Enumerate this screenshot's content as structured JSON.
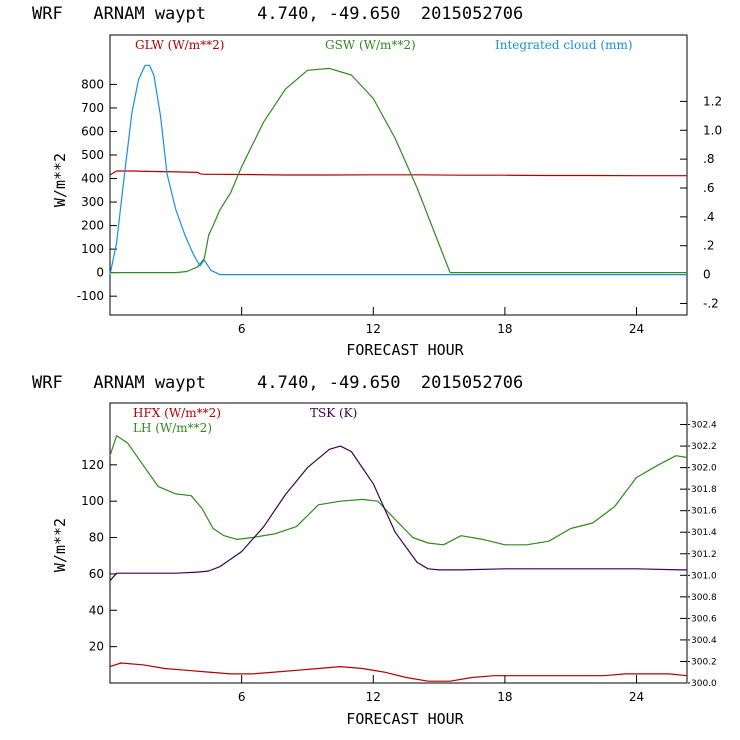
{
  "colors": {
    "glw": "#b40000",
    "gsw": "#2e8b1e",
    "cloud": "#1a8fe0",
    "hfx": "#b40000",
    "lh": "#2e8b1e",
    "tsk": "#3c0050",
    "axis": "#000000"
  },
  "chart_data": [
    {
      "type": "line",
      "title": "WRF   ARNAM waypt     4.740, -49.650  2015052706",
      "xlabel": "FORECAST HOUR",
      "ylabel": "W/m**2",
      "xlim": [
        0,
        26.3
      ],
      "ylim": [
        -180,
        1010
      ],
      "y2lim": [
        -0.28,
        1.66
      ],
      "xticks": [
        6,
        12,
        18,
        24
      ],
      "xtick_labels": [
        "6",
        "12",
        "18",
        "24"
      ],
      "yticks": [
        -100,
        0,
        100,
        200,
        300,
        400,
        500,
        600,
        700,
        800
      ],
      "ytick_labels": [
        "-100",
        "0",
        "100",
        "200",
        "300",
        "400",
        "500",
        "600",
        "700",
        "800"
      ],
      "y2ticks": [
        -0.2,
        0,
        0.2,
        0.4,
        0.6,
        0.8,
        1.0,
        1.2
      ],
      "y2tick_labels": [
        "-.2",
        "0",
        ".2",
        ".4",
        ".6",
        ".8",
        "1.0",
        "1.2"
      ],
      "series": [
        {
          "name": "GLW (W/m**2)",
          "axis": "left",
          "color_key": "glw",
          "x": [
            0,
            0.3,
            1,
            2,
            3,
            4,
            4.1,
            4.3,
            5,
            6,
            8,
            10,
            12,
            14,
            16,
            18,
            20,
            22,
            24,
            26,
            26.3
          ],
          "y": [
            415,
            432,
            432,
            430,
            428,
            426,
            420,
            418,
            418,
            417,
            415,
            415,
            416,
            416,
            414,
            414,
            413,
            413,
            412,
            412,
            412
          ]
        },
        {
          "name": "GSW (W/m**2)",
          "axis": "left",
          "color_key": "gsw",
          "x": [
            0,
            1,
            2,
            3,
            3.5,
            4,
            4.3,
            4.5,
            4.7,
            5,
            5.5,
            6,
            7,
            8,
            9,
            10,
            11,
            12,
            13,
            14,
            15,
            15.5,
            16,
            18,
            20,
            22,
            24,
            26,
            26.3
          ],
          "y": [
            0,
            0,
            0,
            0,
            5,
            25,
            60,
            160,
            200,
            265,
            340,
            450,
            640,
            780,
            860,
            868,
            840,
            740,
            570,
            360,
            120,
            0,
            0,
            0,
            0,
            0,
            0,
            0,
            0
          ]
        },
        {
          "name": "Integrated cloud (mm)",
          "axis": "right",
          "color_key": "cloud",
          "x": [
            0,
            0.3,
            0.6,
            1,
            1.3,
            1.6,
            1.8,
            2,
            2.3,
            2.6,
            3,
            3.4,
            3.8,
            4.1,
            4.3,
            4.6,
            5,
            6,
            8,
            10,
            12,
            14,
            16,
            18,
            20,
            22,
            24,
            26,
            26.3
          ],
          "y": [
            0,
            0.22,
            0.62,
            1.12,
            1.35,
            1.45,
            1.45,
            1.38,
            1.1,
            0.7,
            0.45,
            0.28,
            0.14,
            0.06,
            0.1,
            0.03,
            0,
            0,
            0,
            0,
            0,
            0,
            0,
            0,
            0,
            0,
            0,
            0,
            0
          ]
        }
      ]
    },
    {
      "type": "line",
      "title": "WRF   ARNAM waypt     4.740, -49.650  2015052706",
      "xlabel": "FORECAST HOUR",
      "ylabel": "W/m**2",
      "xlim": [
        0,
        26.3
      ],
      "ylim": [
        0,
        154
      ],
      "y2lim": [
        300.0,
        302.6
      ],
      "xticks": [
        6,
        12,
        18,
        24
      ],
      "xtick_labels": [
        "6",
        "12",
        "18",
        "24"
      ],
      "yticks": [
        20,
        40,
        60,
        80,
        100,
        120
      ],
      "ytick_labels": [
        "20",
        "40",
        "60",
        "80",
        "100",
        "120"
      ],
      "y2ticks": [
        300.0,
        300.2,
        300.4,
        300.6,
        300.8,
        301.0,
        301.2,
        301.4,
        301.6,
        301.8,
        302.0,
        302.2,
        302.4
      ],
      "y2tick_labels": [
        "300.0",
        "300.2",
        "300.4",
        "300.6",
        "300.8",
        "301.0",
        "301.2",
        "301.4",
        "301.6",
        "301.8",
        "302.0",
        "302.2",
        "302.4"
      ],
      "series": [
        {
          "name": "HFX (W/m**2)",
          "axis": "left",
          "color_key": "hfx",
          "x": [
            0,
            0.5,
            1.5,
            2.5,
            3.5,
            4.5,
            5.5,
            6.5,
            7.5,
            8.5,
            9.5,
            10.5,
            11.5,
            12.5,
            13.5,
            14.5,
            15.5,
            16.5,
            17.5,
            18.5,
            19.5,
            20.5,
            21.5,
            22.5,
            23.5,
            24.5,
            25.5,
            26.3
          ],
          "y": [
            9,
            11,
            10,
            8,
            7,
            6,
            5,
            5,
            6,
            7,
            8,
            9,
            8,
            6,
            3,
            1,
            1,
            3,
            4,
            4,
            4,
            4,
            4,
            4,
            5,
            5,
            5,
            4
          ]
        },
        {
          "name": "LH (W/m**2)",
          "axis": "left",
          "color_key": "lh",
          "x": [
            0,
            0.3,
            0.8,
            1.5,
            2.2,
            3,
            3.7,
            4.2,
            4.7,
            5.2,
            5.8,
            6.5,
            7.5,
            8.5,
            9.5,
            10.5,
            11.5,
            12.2,
            13,
            13.8,
            14.5,
            15.2,
            16,
            17,
            18,
            19,
            20,
            21,
            22,
            23,
            24,
            25,
            25.8,
            26.3
          ],
          "y": [
            125,
            136,
            132,
            120,
            108,
            104,
            103,
            96,
            85,
            81,
            79,
            80,
            82,
            86,
            98,
            100,
            101,
            100,
            90,
            80,
            77,
            76,
            81,
            79,
            76,
            76,
            78,
            85,
            88,
            97,
            113,
            120,
            125,
            124
          ]
        },
        {
          "name": "TSK (K)",
          "axis": "right",
          "color_key": "tsk",
          "x": [
            0,
            0.3,
            1,
            2,
            3,
            4,
            4.5,
            5,
            6,
            7,
            8,
            9,
            10,
            10.5,
            11,
            12,
            13,
            14,
            14.5,
            15,
            16,
            18,
            20,
            22,
            24,
            26,
            26.3
          ],
          "y": [
            300.95,
            301.02,
            301.02,
            301.02,
            301.02,
            301.03,
            301.04,
            301.08,
            301.22,
            301.45,
            301.75,
            302.0,
            302.17,
            302.2,
            302.15,
            301.85,
            301.4,
            301.12,
            301.06,
            301.05,
            301.05,
            301.06,
            301.06,
            301.06,
            301.06,
            301.05,
            301.05
          ]
        }
      ]
    }
  ]
}
